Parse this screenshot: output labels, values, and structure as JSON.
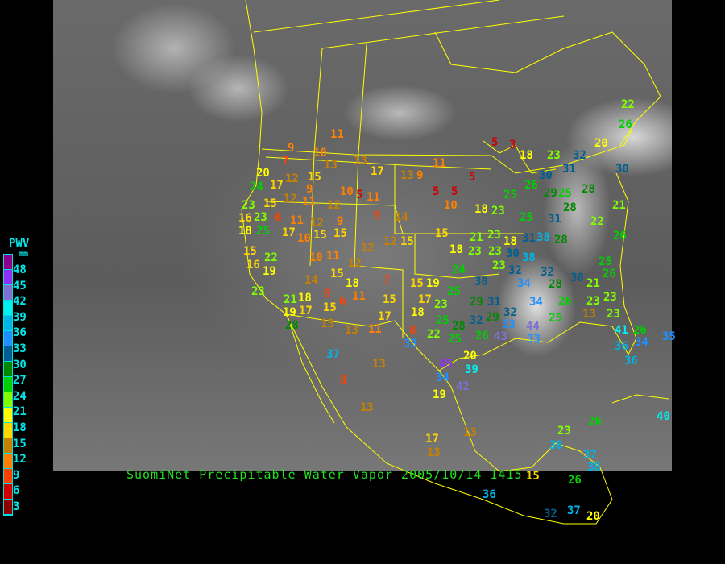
{
  "title": "SuomiNet Precipitable Water Vapor 2005/10/14 1415",
  "legend": {
    "title": "PWV",
    "unit": "mm",
    "labels": [
      "48",
      "45",
      "42",
      "39",
      "36",
      "33",
      "30",
      "27",
      "24",
      "21",
      "18",
      "15",
      "12",
      "9",
      "6",
      "3"
    ],
    "colors": [
      "#8b008b",
      "#9030f0",
      "#8070d0",
      "#00f0f0",
      "#00b4e6",
      "#1e90ff",
      "#005f90",
      "#008800",
      "#00d000",
      "#80ff00",
      "#ffff00",
      "#ffd700",
      "#c88000",
      "#ff8000",
      "#ff4000",
      "#d00000",
      "#8b0000"
    ]
  },
  "colors": {
    "borders": "#ffff00",
    "title": "#20e020",
    "legend_text": "#00e8e8"
  },
  "stations": {
    "values": [
      11,
      9,
      7,
      10,
      13,
      13,
      17,
      13,
      9,
      11,
      5,
      3,
      18,
      23,
      32,
      20,
      22,
      26,
      30,
      20,
      24,
      17,
      12,
      15,
      9,
      12,
      11,
      12,
      10,
      5,
      11,
      23,
      15,
      16,
      23,
      6,
      11,
      12,
      9,
      8,
      14,
      5,
      5,
      5,
      10,
      18,
      23,
      25,
      26,
      30,
      31,
      29,
      25,
      28,
      28,
      25,
      31,
      22,
      21,
      18,
      25,
      17,
      10,
      15,
      15,
      12,
      12,
      15,
      15,
      21,
      23,
      18,
      31,
      38,
      28,
      26,
      15,
      16,
      22,
      10,
      11,
      12,
      18,
      23,
      23,
      30,
      38,
      19,
      14,
      15,
      18,
      7,
      15,
      19,
      24,
      30,
      23,
      32,
      32,
      34,
      28,
      30,
      21,
      25,
      26,
      23,
      21,
      18,
      8,
      11,
      15,
      17,
      25,
      29,
      31,
      34,
      26,
      23,
      23,
      19,
      17,
      15,
      6,
      18,
      23,
      25,
      28,
      32,
      29,
      32,
      33,
      25,
      13,
      23,
      28,
      13,
      13,
      11,
      17,
      8,
      22,
      25,
      26,
      43,
      33,
      44,
      41,
      26,
      35,
      33,
      20,
      45,
      39,
      42,
      34,
      37,
      13,
      8,
      13,
      19,
      17,
      13,
      13,
      38,
      23,
      26,
      37,
      38,
      40,
      36,
      36,
      34,
      36,
      15,
      26,
      32,
      37,
      20,
      32
    ]
  }
}
